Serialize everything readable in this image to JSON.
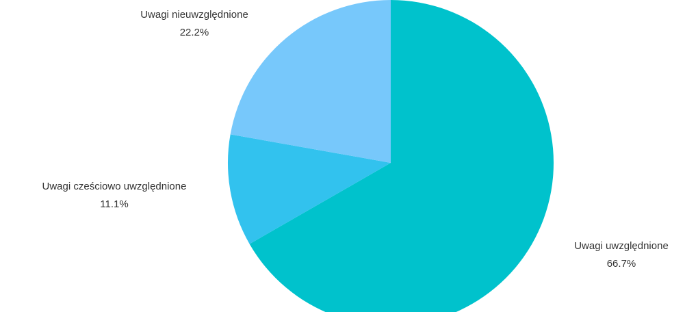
{
  "chart_data": {
    "type": "pie",
    "title": "",
    "start_angle_deg": 0,
    "direction": "clockwise",
    "slices": [
      {
        "label": "Uwagi uwzględnione",
        "value": 66.7,
        "value_label": "66.7%",
        "color": "#00c2cc"
      },
      {
        "label": "Uwagi cześciowo uwzględnione",
        "value": 11.1,
        "value_label": "11.1%",
        "color": "#32c2ee"
      },
      {
        "label": "Uwagi nieuwzględnione",
        "value": 22.2,
        "value_label": "22.2%",
        "color": "#77c8fb"
      }
    ]
  }
}
